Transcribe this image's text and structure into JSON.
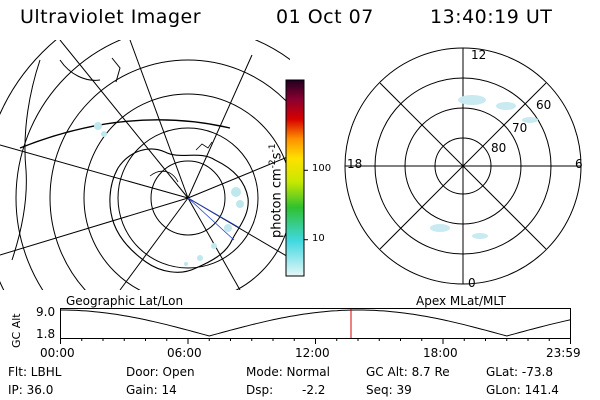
{
  "header": {
    "title": "Ultraviolet Imager",
    "date": "01 Oct 07",
    "time": "13:40:19 UT"
  },
  "colorbar": {
    "unit_main": "photon cm",
    "unit_exp1": "-2",
    "unit_s": "s",
    "unit_exp2": "-1",
    "tick_labels": [
      "100",
      "10"
    ],
    "tick_values": [
      100,
      10
    ],
    "range": [
      3,
      2000
    ]
  },
  "polar_plot": {
    "mlt_labels": {
      "top": "12",
      "left": "18",
      "right": "6",
      "bottom": "0"
    },
    "lat_labels": [
      "60",
      "70",
      "80"
    ]
  },
  "timeline": {
    "left_title": "Geographic Lat/Lon",
    "right_title": "Apex MLat/MLT",
    "y_axis_label": "GC Alt",
    "y_ticks": [
      "9.0",
      "1.8"
    ],
    "x_ticks": [
      "00:00",
      "06:00",
      "12:00",
      "18:00",
      "23:59"
    ],
    "current_time_hours": 13.67
  },
  "footer": {
    "flt": "Flt: LBHL",
    "ip": "IP: 36.0",
    "door": "Door: Open",
    "gain": "Gain: 14",
    "mode": "Mode: Normal",
    "dsp": "Dsp:",
    "dsp_value": "-2.2",
    "gc_alt": "GC Alt: 8.7 Re",
    "seq": "Seq: 39",
    "glat": "GLat: -73.8",
    "glon": "GLon: 141.4"
  },
  "colors": {
    "accent_marker": "#e00000"
  }
}
